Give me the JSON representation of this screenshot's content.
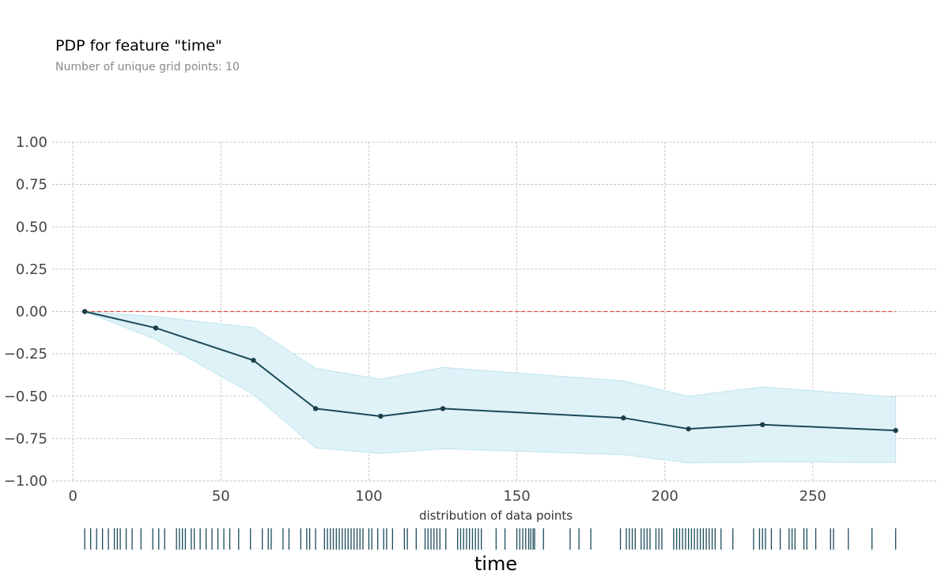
{
  "chart_data": {
    "type": "line",
    "title": "PDP for feature \"time\"",
    "subtitle": "Number of unique grid points: 10",
    "xlabel": "time",
    "dist_label": "distribution of data points",
    "xlim": [
      -7,
      292
    ],
    "ylim": [
      -1.0,
      1.0
    ],
    "x_ticks": [
      0,
      50,
      100,
      150,
      200,
      250
    ],
    "x_tick_labels": [
      "0",
      "50",
      "100",
      "150",
      "200",
      "250"
    ],
    "y_ticks": [
      1.0,
      0.75,
      0.5,
      0.25,
      0.0,
      -0.25,
      -0.5,
      -0.75,
      -1.0
    ],
    "y_tick_labels": [
      "1.00",
      "0.75",
      "0.50",
      "0.25",
      "0.00",
      "−0.25",
      "−0.50",
      "−0.75",
      "−1.00"
    ],
    "grid": true,
    "x": [
      4,
      28,
      61,
      82,
      104,
      125,
      186,
      208,
      233,
      278
    ],
    "y": [
      0.0,
      -0.097,
      -0.288,
      -0.573,
      -0.618,
      -0.573,
      -0.628,
      -0.693,
      -0.668,
      -0.702
    ],
    "upper": [
      0.0,
      -0.03,
      -0.095,
      -0.335,
      -0.4,
      -0.33,
      -0.41,
      -0.5,
      -0.445,
      -0.505
    ],
    "lower": [
      0.0,
      -0.165,
      -0.49,
      -0.805,
      -0.838,
      -0.81,
      -0.845,
      -0.893,
      -0.888,
      -0.89
    ],
    "reference_line": 0.0,
    "rug": [
      4,
      6,
      8,
      10,
      12,
      14,
      15,
      16,
      18,
      20,
      23,
      27,
      29,
      31,
      35,
      36,
      37,
      38,
      40,
      41,
      43,
      45,
      47,
      49,
      51,
      53,
      56,
      60,
      64,
      66,
      67,
      71,
      73,
      77,
      79,
      80,
      82,
      85,
      86,
      87,
      88,
      89,
      90,
      91,
      92,
      93,
      94,
      95,
      96,
      97,
      98,
      100,
      101,
      103,
      105,
      106,
      108,
      112,
      113,
      116,
      119,
      120,
      121,
      122,
      123,
      124,
      126,
      130,
      131,
      132,
      133,
      134,
      135,
      136,
      137,
      138,
      143,
      146,
      150,
      151,
      152,
      153,
      154,
      154.7,
      155.5,
      156,
      159,
      168,
      171,
      175,
      185,
      187,
      188,
      189,
      190,
      192,
      193,
      194,
      195,
      197,
      198,
      199,
      203,
      204,
      205,
      206,
      207,
      208,
      209,
      210,
      211,
      212,
      213,
      214,
      215,
      216,
      217,
      219,
      223,
      230,
      232,
      233,
      234,
      236,
      239,
      242,
      243,
      244,
      247,
      248,
      251,
      256,
      257,
      262,
      270,
      278
    ],
    "colors": {
      "line": "#1a4a5a",
      "marker": "#1e3e48",
      "band_fill": "#dff2f7",
      "band_edge": "#bfe4ee",
      "reference": "#e74c3c",
      "grid": "#c8c8c8",
      "rug": "#1a4a5a"
    }
  }
}
